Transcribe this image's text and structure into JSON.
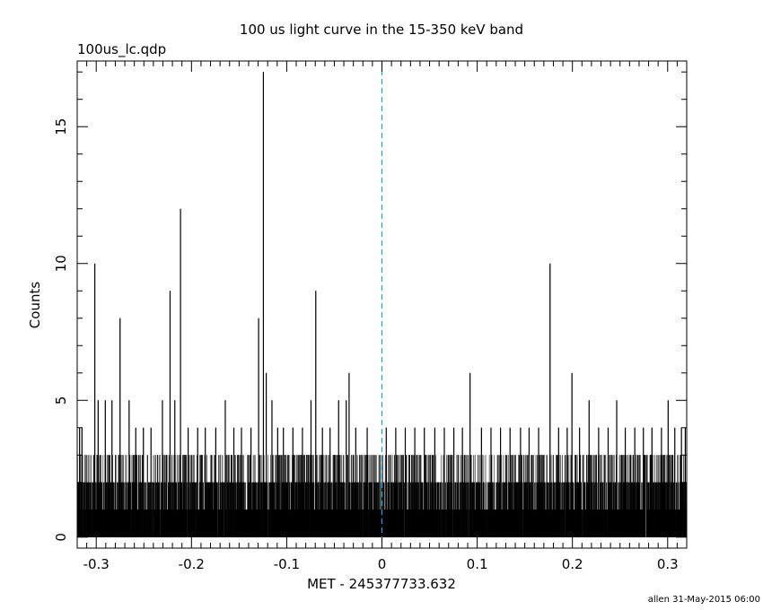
{
  "chart_data": {
    "type": "bar",
    "title": "100 us light curve in the 15-350 keV band",
    "file_label": "100us_lc.qdp",
    "xlabel": "MET - 245377733.632",
    "ylabel": "Counts",
    "footer": "allen 31-May-2015 06:00",
    "xlim": [
      -0.32,
      0.32
    ],
    "ylim": [
      -0.4,
      17.4
    ],
    "x_ticks": [
      -0.3,
      -0.2,
      -0.1,
      0,
      0.1,
      0.2,
      0.3
    ],
    "x_tick_labels": [
      "-0.3",
      "-0.2",
      "-0.1",
      "0",
      "0.1",
      "0.2",
      "0.3"
    ],
    "y_ticks": [
      0,
      5,
      10,
      15
    ],
    "y_tick_labels": [
      "0",
      "5",
      "10",
      "15"
    ],
    "bin_width": 0.0001,
    "reference_line": {
      "x": 0,
      "style": "dashed",
      "color": "#2a9bd3"
    },
    "peaks": [
      {
        "x": -0.3175,
        "y": 4
      },
      {
        "x": -0.315,
        "y": 4
      },
      {
        "x": -0.3015,
        "y": 10
      },
      {
        "x": -0.298,
        "y": 5
      },
      {
        "x": -0.2905,
        "y": 5
      },
      {
        "x": -0.2835,
        "y": 5
      },
      {
        "x": -0.275,
        "y": 8
      },
      {
        "x": -0.2655,
        "y": 5
      },
      {
        "x": -0.2585,
        "y": 4
      },
      {
        "x": -0.2505,
        "y": 4
      },
      {
        "x": -0.2425,
        "y": 4
      },
      {
        "x": -0.2305,
        "y": 5
      },
      {
        "x": -0.2225,
        "y": 9
      },
      {
        "x": -0.2175,
        "y": 5
      },
      {
        "x": -0.2115,
        "y": 12
      },
      {
        "x": -0.2035,
        "y": 4
      },
      {
        "x": -0.1935,
        "y": 4
      },
      {
        "x": -0.1855,
        "y": 4
      },
      {
        "x": -0.1745,
        "y": 4
      },
      {
        "x": -0.1645,
        "y": 5
      },
      {
        "x": -0.1555,
        "y": 4
      },
      {
        "x": -0.1475,
        "y": 4
      },
      {
        "x": -0.1375,
        "y": 4
      },
      {
        "x": -0.1295,
        "y": 8
      },
      {
        "x": -0.1245,
        "y": 17
      },
      {
        "x": -0.1215,
        "y": 6
      },
      {
        "x": -0.1155,
        "y": 5
      },
      {
        "x": -0.1095,
        "y": 4
      },
      {
        "x": -0.1035,
        "y": 4
      },
      {
        "x": -0.0935,
        "y": 4
      },
      {
        "x": -0.0835,
        "y": 4
      },
      {
        "x": -0.0745,
        "y": 5
      },
      {
        "x": -0.0695,
        "y": 9
      },
      {
        "x": -0.0625,
        "y": 4
      },
      {
        "x": -0.0545,
        "y": 4
      },
      {
        "x": -0.0455,
        "y": 5
      },
      {
        "x": -0.0375,
        "y": 5
      },
      {
        "x": -0.0345,
        "y": 6
      },
      {
        "x": -0.0275,
        "y": 4
      },
      {
        "x": -0.0155,
        "y": 4
      },
      {
        "x": 0.0045,
        "y": 4
      },
      {
        "x": 0.0145,
        "y": 4
      },
      {
        "x": 0.0245,
        "y": 4
      },
      {
        "x": 0.0345,
        "y": 4
      },
      {
        "x": 0.0445,
        "y": 4
      },
      {
        "x": 0.0555,
        "y": 4
      },
      {
        "x": 0.0655,
        "y": 4
      },
      {
        "x": 0.0755,
        "y": 4
      },
      {
        "x": 0.0845,
        "y": 4
      },
      {
        "x": 0.0925,
        "y": 6
      },
      {
        "x": 0.1045,
        "y": 4
      },
      {
        "x": 0.1145,
        "y": 4
      },
      {
        "x": 0.1245,
        "y": 4
      },
      {
        "x": 0.1345,
        "y": 4
      },
      {
        "x": 0.1455,
        "y": 4
      },
      {
        "x": 0.1545,
        "y": 4
      },
      {
        "x": 0.1645,
        "y": 4
      },
      {
        "x": 0.1765,
        "y": 10
      },
      {
        "x": 0.1855,
        "y": 4
      },
      {
        "x": 0.1945,
        "y": 4
      },
      {
        "x": 0.1995,
        "y": 6
      },
      {
        "x": 0.2075,
        "y": 4
      },
      {
        "x": 0.2175,
        "y": 5
      },
      {
        "x": 0.2275,
        "y": 4
      },
      {
        "x": 0.2375,
        "y": 4
      },
      {
        "x": 0.2465,
        "y": 5
      },
      {
        "x": 0.2555,
        "y": 4
      },
      {
        "x": 0.2655,
        "y": 4
      },
      {
        "x": 0.2745,
        "y": 4
      },
      {
        "x": 0.2835,
        "y": 4
      },
      {
        "x": 0.2935,
        "y": 4
      },
      {
        "x": 0.3005,
        "y": 5
      },
      {
        "x": 0.3075,
        "y": 4
      },
      {
        "x": 0.3145,
        "y": 4
      },
      {
        "x": 0.3185,
        "y": 4
      }
    ]
  }
}
